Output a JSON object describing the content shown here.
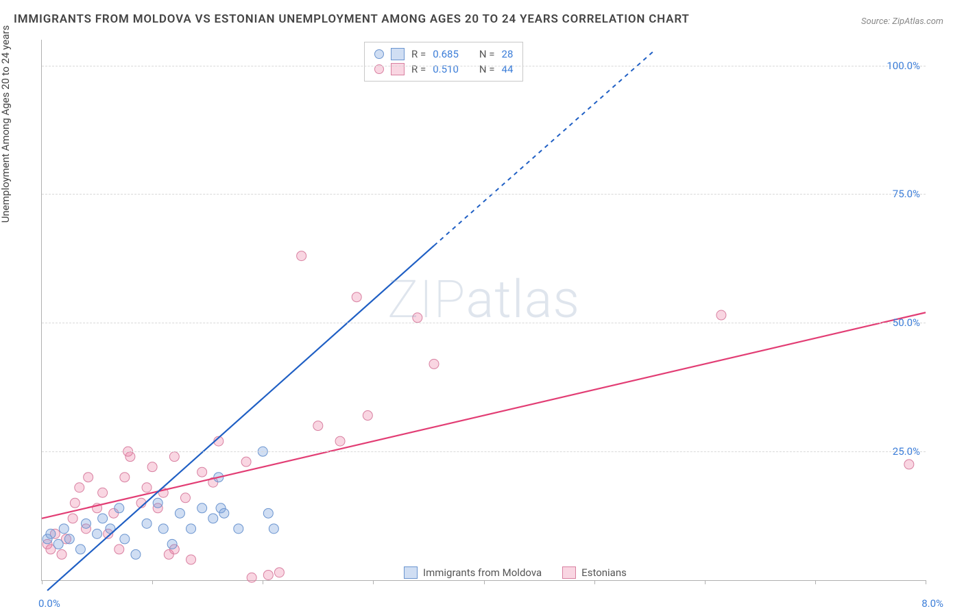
{
  "title": "IMMIGRANTS FROM MOLDOVA VS ESTONIAN UNEMPLOYMENT AMONG AGES 20 TO 24 YEARS CORRELATION CHART",
  "source": "Source: ZipAtlas.com",
  "y_axis_label": "Unemployment Among Ages 20 to 24 years",
  "watermark": "ZIPatlas",
  "chart": {
    "type": "scatter-with-regression",
    "xlim": [
      0,
      8
    ],
    "ylim": [
      0,
      105
    ],
    "x_ticks": [
      0,
      1,
      2,
      3,
      4,
      5,
      6,
      7,
      8
    ],
    "x_tick_labels_shown": {
      "0": "0.0%",
      "8": "8.0%"
    },
    "y_gridlines": [
      25,
      50,
      75,
      100
    ],
    "y_tick_labels": {
      "25": "25.0%",
      "50": "50.0%",
      "75": "75.0%",
      "100": "100.0%"
    },
    "marker_radius": 7,
    "marker_stroke_width": 1,
    "line_width_solid": 2.2,
    "line_width_dash": 2,
    "dash_pattern": "6,6",
    "grid_color": "#d8d8d8",
    "axis_color": "#b0b0b0",
    "tick_label_color": "#3b7dd8",
    "title_color": "#444444",
    "series": {
      "moldova": {
        "label": "Immigrants from Moldova",
        "fill": "rgba(120,160,220,0.35)",
        "stroke": "#6a94cf",
        "R": "0.685",
        "N": "28",
        "line_color": "#1f5fc4",
        "line_from": [
          0.05,
          -2
        ],
        "line_solid_to": [
          3.55,
          65
        ],
        "line_dash_to": [
          5.55,
          103
        ],
        "points": [
          [
            0.05,
            8
          ],
          [
            0.08,
            9
          ],
          [
            0.15,
            7
          ],
          [
            0.2,
            10
          ],
          [
            0.25,
            8
          ],
          [
            0.35,
            6
          ],
          [
            0.4,
            11
          ],
          [
            0.5,
            9
          ],
          [
            0.55,
            12
          ],
          [
            0.62,
            10
          ],
          [
            0.7,
            14
          ],
          [
            0.75,
            8
          ],
          [
            0.85,
            5
          ],
          [
            0.95,
            11
          ],
          [
            1.05,
            15
          ],
          [
            1.1,
            10
          ],
          [
            1.18,
            7
          ],
          [
            1.25,
            13
          ],
          [
            1.35,
            10
          ],
          [
            1.45,
            14
          ],
          [
            1.55,
            12
          ],
          [
            1.62,
            14
          ],
          [
            1.6,
            20
          ],
          [
            1.65,
            13
          ],
          [
            1.78,
            10
          ],
          [
            2.05,
            13
          ],
          [
            2.0,
            25
          ],
          [
            2.1,
            10
          ]
        ]
      },
      "estonians": {
        "label": "Estonians",
        "fill": "rgba(235,120,160,0.30)",
        "stroke": "#d87fa0",
        "R": "0.510",
        "N": "44",
        "line_color": "#e23d74",
        "line_from": [
          0,
          12
        ],
        "line_solid_to": [
          8,
          52
        ],
        "points": [
          [
            0.05,
            7
          ],
          [
            0.08,
            6
          ],
          [
            0.12,
            9
          ],
          [
            0.18,
            5
          ],
          [
            0.22,
            8
          ],
          [
            0.28,
            12
          ],
          [
            0.3,
            15
          ],
          [
            0.34,
            18
          ],
          [
            0.4,
            10
          ],
          [
            0.42,
            20
          ],
          [
            0.5,
            14
          ],
          [
            0.55,
            17
          ],
          [
            0.6,
            9
          ],
          [
            0.65,
            13
          ],
          [
            0.7,
            6
          ],
          [
            0.75,
            20
          ],
          [
            0.8,
            24
          ],
          [
            0.78,
            25
          ],
          [
            0.9,
            15
          ],
          [
            0.95,
            18
          ],
          [
            1.0,
            22
          ],
          [
            1.05,
            14
          ],
          [
            1.1,
            17
          ],
          [
            1.15,
            5
          ],
          [
            1.2,
            6
          ],
          [
            1.2,
            24
          ],
          [
            1.3,
            16
          ],
          [
            1.35,
            4
          ],
          [
            1.45,
            21
          ],
          [
            1.55,
            19
          ],
          [
            1.6,
            27
          ],
          [
            1.85,
            23
          ],
          [
            1.9,
            0.5
          ],
          [
            2.05,
            1
          ],
          [
            2.15,
            1.5
          ],
          [
            2.35,
            63
          ],
          [
            2.5,
            30
          ],
          [
            2.7,
            27
          ],
          [
            2.85,
            55
          ],
          [
            2.95,
            32
          ],
          [
            3.4,
            51
          ],
          [
            3.55,
            42
          ],
          [
            6.15,
            51.5
          ],
          [
            7.85,
            22.5
          ]
        ]
      }
    }
  },
  "legend_top": {
    "rows": [
      {
        "series": "moldova",
        "r_label": "R =",
        "n_label": "N ="
      },
      {
        "series": "estonians",
        "r_label": "R =",
        "n_label": "N ="
      }
    ]
  }
}
